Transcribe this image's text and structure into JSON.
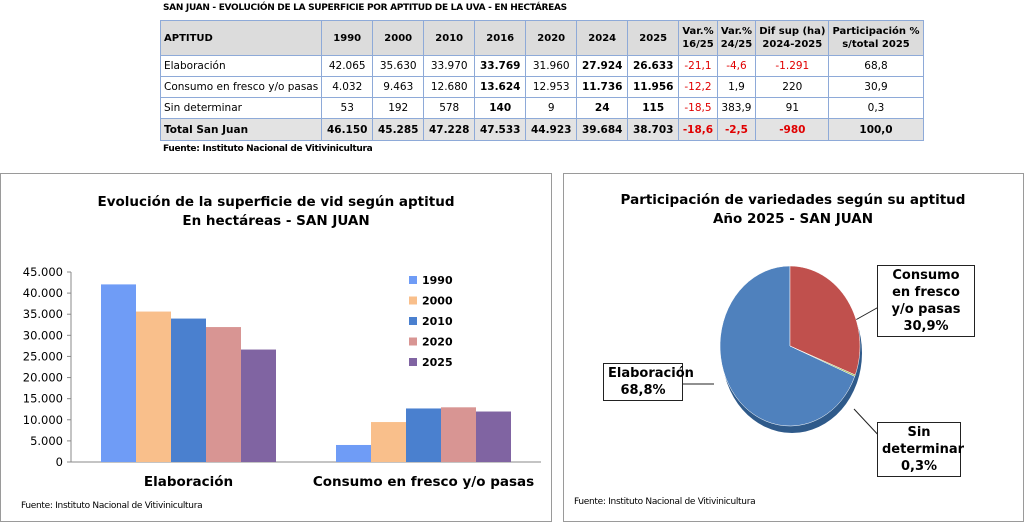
{
  "table": {
    "title": "SAN JUAN - EVOLUCIÓN DE LA SUPERFICIE POR APTITUD DE LA UVA - EN HECTÁREAS",
    "header": [
      [
        "APTITUD"
      ],
      [
        "1990"
      ],
      [
        "2000"
      ],
      [
        "2010"
      ],
      [
        "2016"
      ],
      [
        "2020"
      ],
      [
        "2024"
      ],
      [
        "2025"
      ],
      [
        "Var.%",
        "16/25"
      ],
      [
        "Var.%",
        "24/25"
      ],
      [
        "Dif sup (ha)",
        "2024-2025"
      ],
      [
        "Participación %",
        "s/total 2025"
      ]
    ],
    "rows": [
      [
        "Elaboración",
        "42.065",
        "35.630",
        "33.970",
        "33.769",
        "31.960",
        "27.924",
        "26.633",
        "-21,1",
        "-4,6",
        "-1.291",
        "68,8"
      ],
      [
        "Consumo en fresco y/o pasas",
        "4.032",
        "9.463",
        "12.680",
        "13.624",
        "12.953",
        "11.736",
        "11.956",
        "-12,2",
        "1,9",
        "220",
        "30,9"
      ],
      [
        "Sin determinar",
        "53",
        "192",
        "578",
        "140",
        "9",
        "24",
        "115",
        "-18,5",
        "383,9",
        "91",
        "0,3"
      ],
      [
        "Total San Juan",
        "46.150",
        "45.285",
        "47.228",
        "47.533",
        "44.923",
        "39.684",
        "38.703",
        "-18,6",
        "-2,5",
        "-980",
        "100,0"
      ]
    ],
    "source": "Fuente: Instituto Nacional de Vitivinicultura"
  },
  "chart_data": [
    {
      "type": "bar",
      "title": "Evolución de la superficie de vid según aptitud",
      "subtitle": "En hectáreas - SAN JUAN",
      "categories": [
        "Elaboración",
        "Consumo en fresco y/o pasas"
      ],
      "series": [
        {
          "name": "1990",
          "color": "#6f9cf6",
          "values": [
            42065,
            4032
          ]
        },
        {
          "name": "2000",
          "color": "#f9bf8b",
          "values": [
            35630,
            9463
          ]
        },
        {
          "name": "2010",
          "color": "#4a80cf",
          "values": [
            33970,
            12680
          ]
        },
        {
          "name": "2020",
          "color": "#d89593",
          "values": [
            31960,
            12953
          ]
        },
        {
          "name": "2025",
          "color": "#8064a2",
          "values": [
            26633,
            11956
          ]
        }
      ],
      "ylim": [
        0,
        45000
      ],
      "yticks": [
        0,
        {
          "value": 5000,
          "label": "5.000"
        },
        {
          "value": 10000,
          "label": "10.000"
        },
        {
          "value": 15000,
          "label": "15.000"
        },
        {
          "value": 20000,
          "label": "20.000"
        },
        {
          "value": 25000,
          "label": "25.000"
        },
        {
          "value": 30000,
          "label": "30.000"
        },
        {
          "value": 35000,
          "label": "35.000"
        },
        {
          "value": 40000,
          "label": "40.000"
        },
        {
          "value": 45000,
          "label": "45.000"
        }
      ],
      "source": "Fuente: Instituto Nacional de Vitivinicultura"
    },
    {
      "type": "pie",
      "title": "Participación de variedades según su aptitud",
      "subtitle": "Año 2025 - SAN JUAN",
      "categories": [
        "Elaboración",
        "Consumo en fresco y/o pasas",
        "Sin determinar"
      ],
      "values": [
        68.8,
        30.9,
        0.3
      ],
      "value_labels": [
        "68,8%",
        "30,9%",
        "0,3%"
      ],
      "colors": [
        "#4f81bd",
        "#c0504d",
        "#9bbb59"
      ],
      "source": "Fuente: Instituto Nacional de Vitivinicultura"
    }
  ]
}
